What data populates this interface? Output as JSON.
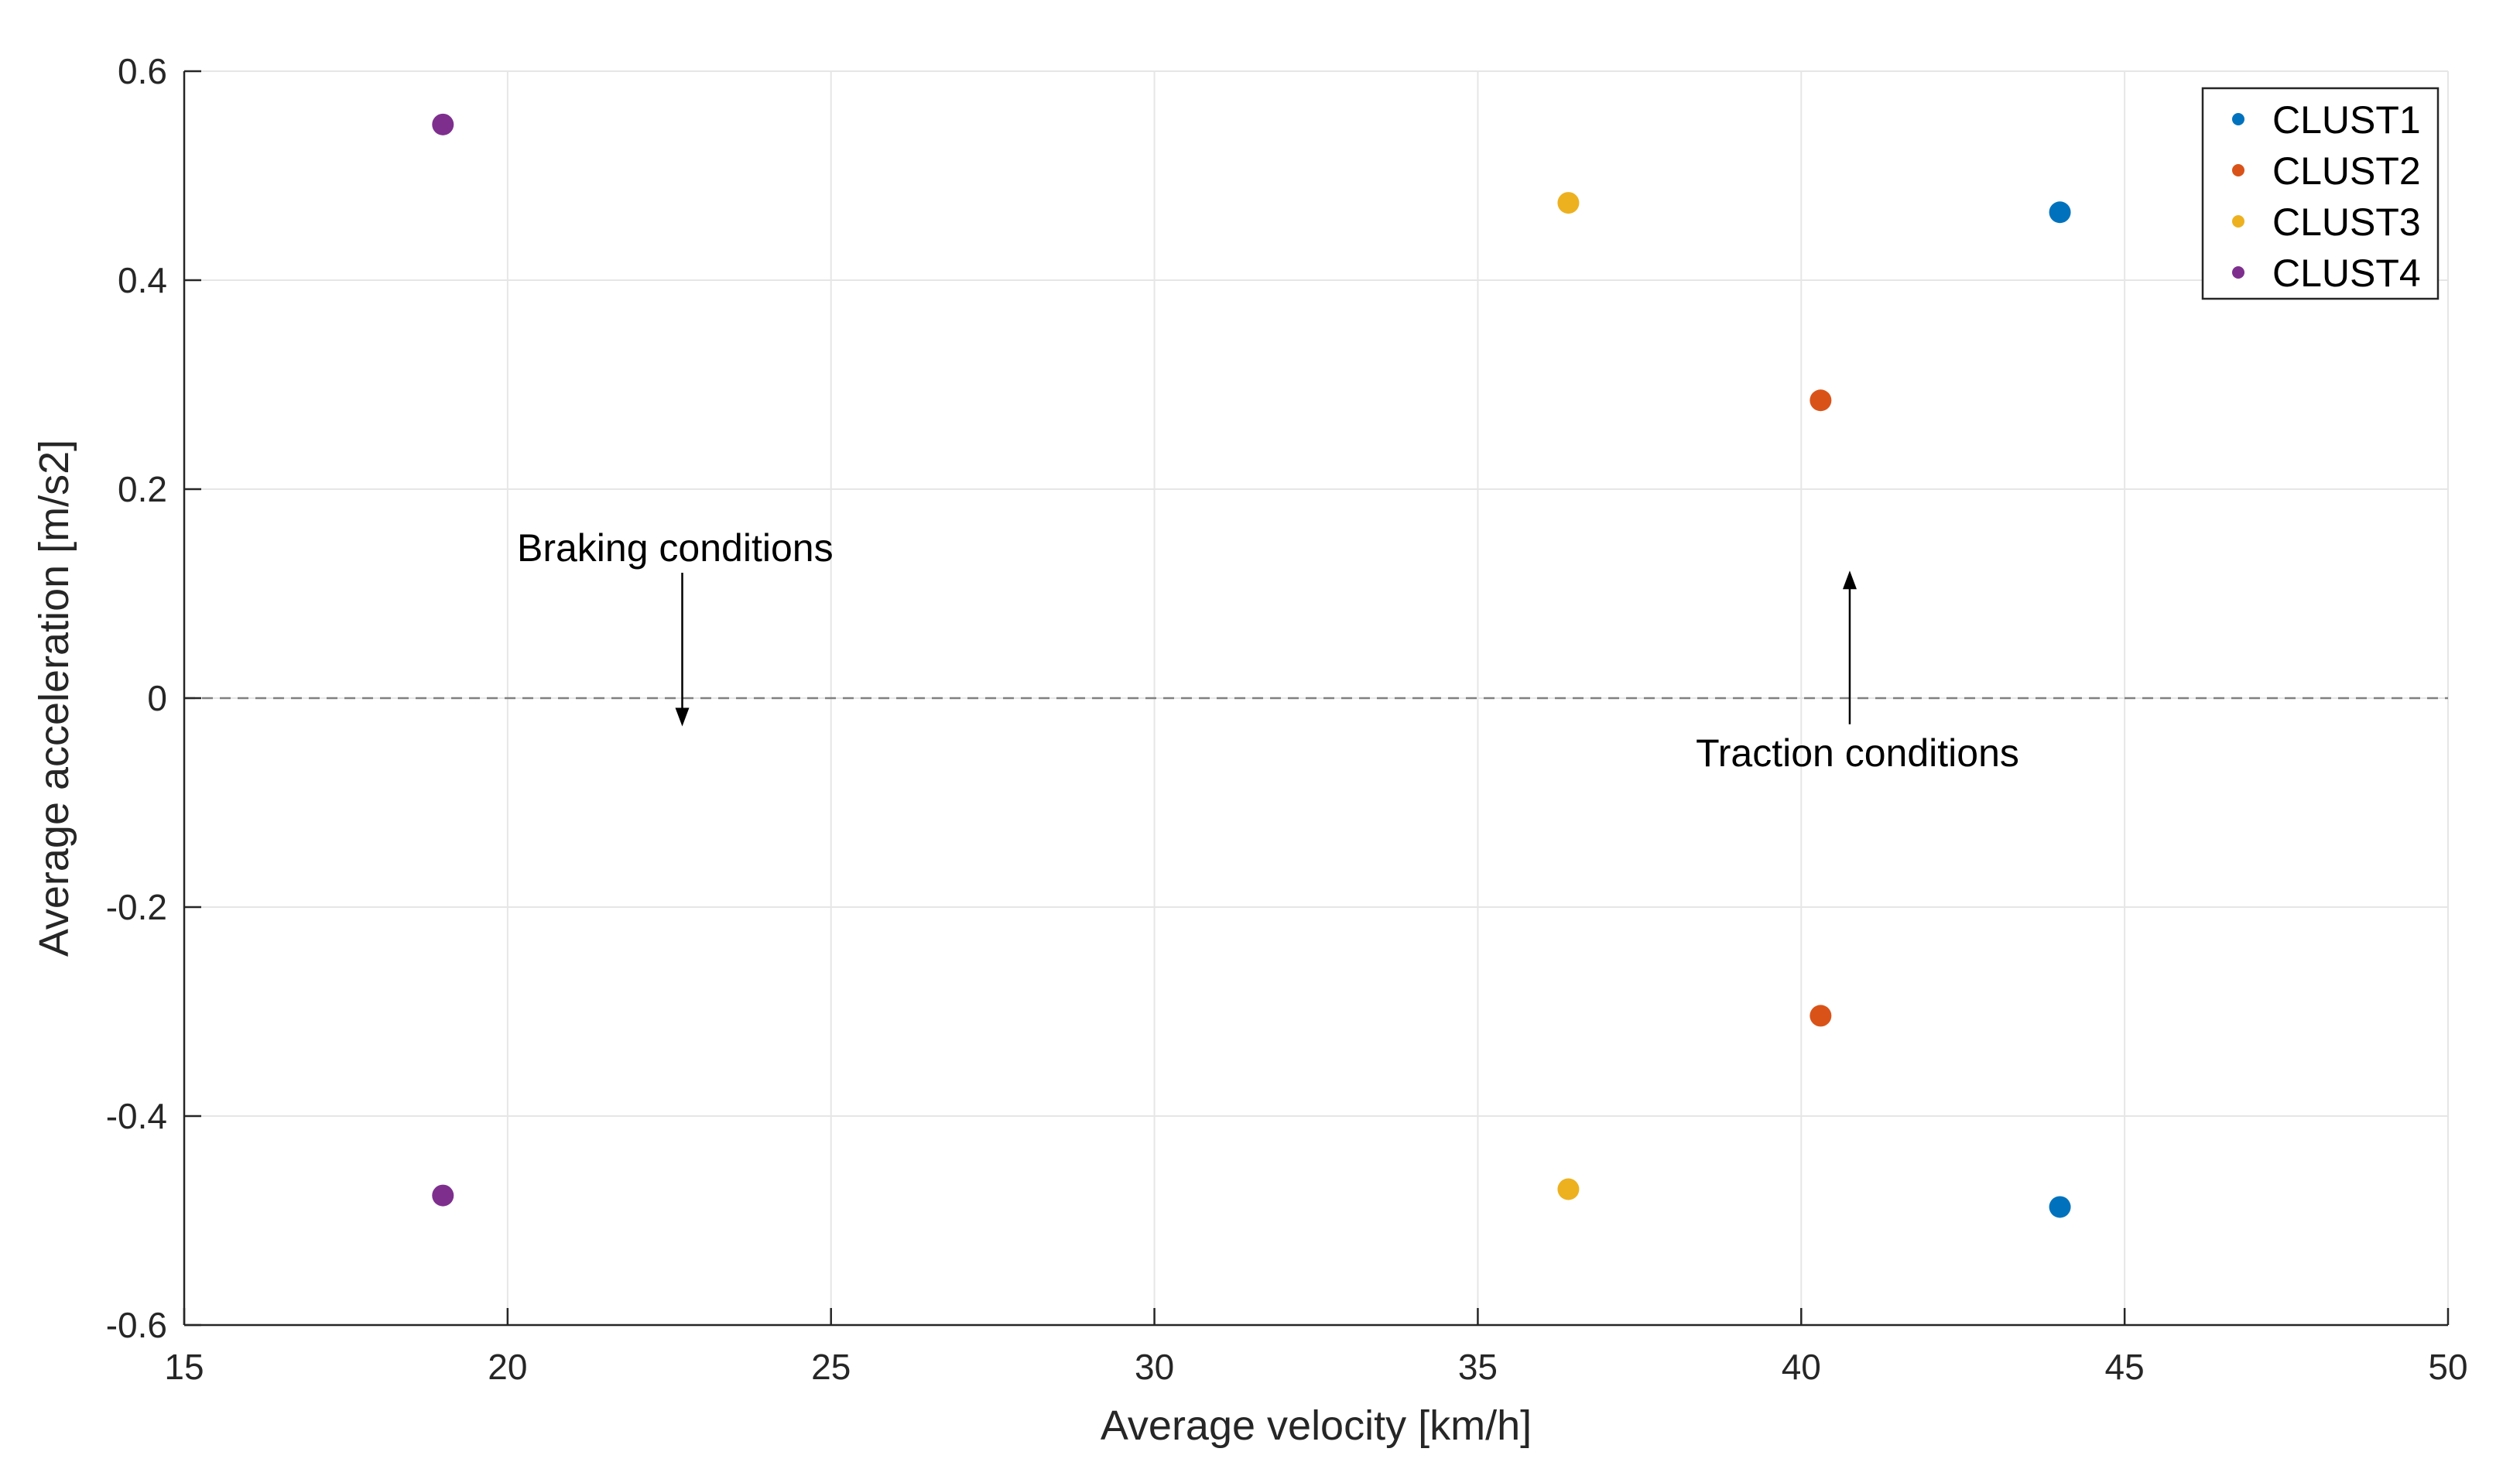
{
  "chart_data": {
    "type": "scatter",
    "title": "",
    "xlabel": "Average velocity [km/h]",
    "ylabel": "Average acceleration [m/s2]",
    "xlim": [
      15,
      50
    ],
    "ylim": [
      -0.6,
      0.6
    ],
    "xticks": [
      15,
      20,
      25,
      30,
      35,
      40,
      45,
      50
    ],
    "xtick_labels": [
      "15",
      "20",
      "25",
      "30",
      "35",
      "40",
      "45",
      "50"
    ],
    "yticks": [
      -0.6,
      -0.4,
      -0.2,
      0,
      0.2,
      0.4,
      0.6
    ],
    "ytick_labels": [
      "-0.6",
      "-0.4",
      "-0.2",
      "0",
      "0.2",
      "0.4",
      "0.6"
    ],
    "grid": true,
    "legend_position": "top-right",
    "reference_line": {
      "y": 0,
      "style": "dashed",
      "color": "#808080"
    },
    "series": [
      {
        "name": "CLUST1",
        "color": "#0072BD",
        "points": [
          {
            "x": 44.0,
            "y": 0.465
          },
          {
            "x": 44.0,
            "y": -0.487
          }
        ]
      },
      {
        "name": "CLUST2",
        "color": "#D95319",
        "points": [
          {
            "x": 40.3,
            "y": 0.285
          },
          {
            "x": 40.3,
            "y": -0.304
          }
        ]
      },
      {
        "name": "CLUST3",
        "color": "#EDB120",
        "points": [
          {
            "x": 36.4,
            "y": 0.474
          },
          {
            "x": 36.4,
            "y": -0.47
          }
        ]
      },
      {
        "name": "CLUST4",
        "color": "#7E2F8E",
        "points": [
          {
            "x": 19.0,
            "y": 0.549
          },
          {
            "x": 19.0,
            "y": -0.476
          }
        ]
      }
    ],
    "annotations": [
      {
        "id": "braking",
        "text": "Braking conditions",
        "arrow_from": {
          "x": 22.7,
          "y": 0.12
        },
        "arrow_to": {
          "x": 22.7,
          "y": -0.027
        }
      },
      {
        "id": "traction",
        "text": "Traction conditions",
        "arrow_from": {
          "x": 40.75,
          "y": -0.025
        },
        "arrow_to": {
          "x": 40.75,
          "y": 0.122
        }
      }
    ]
  }
}
